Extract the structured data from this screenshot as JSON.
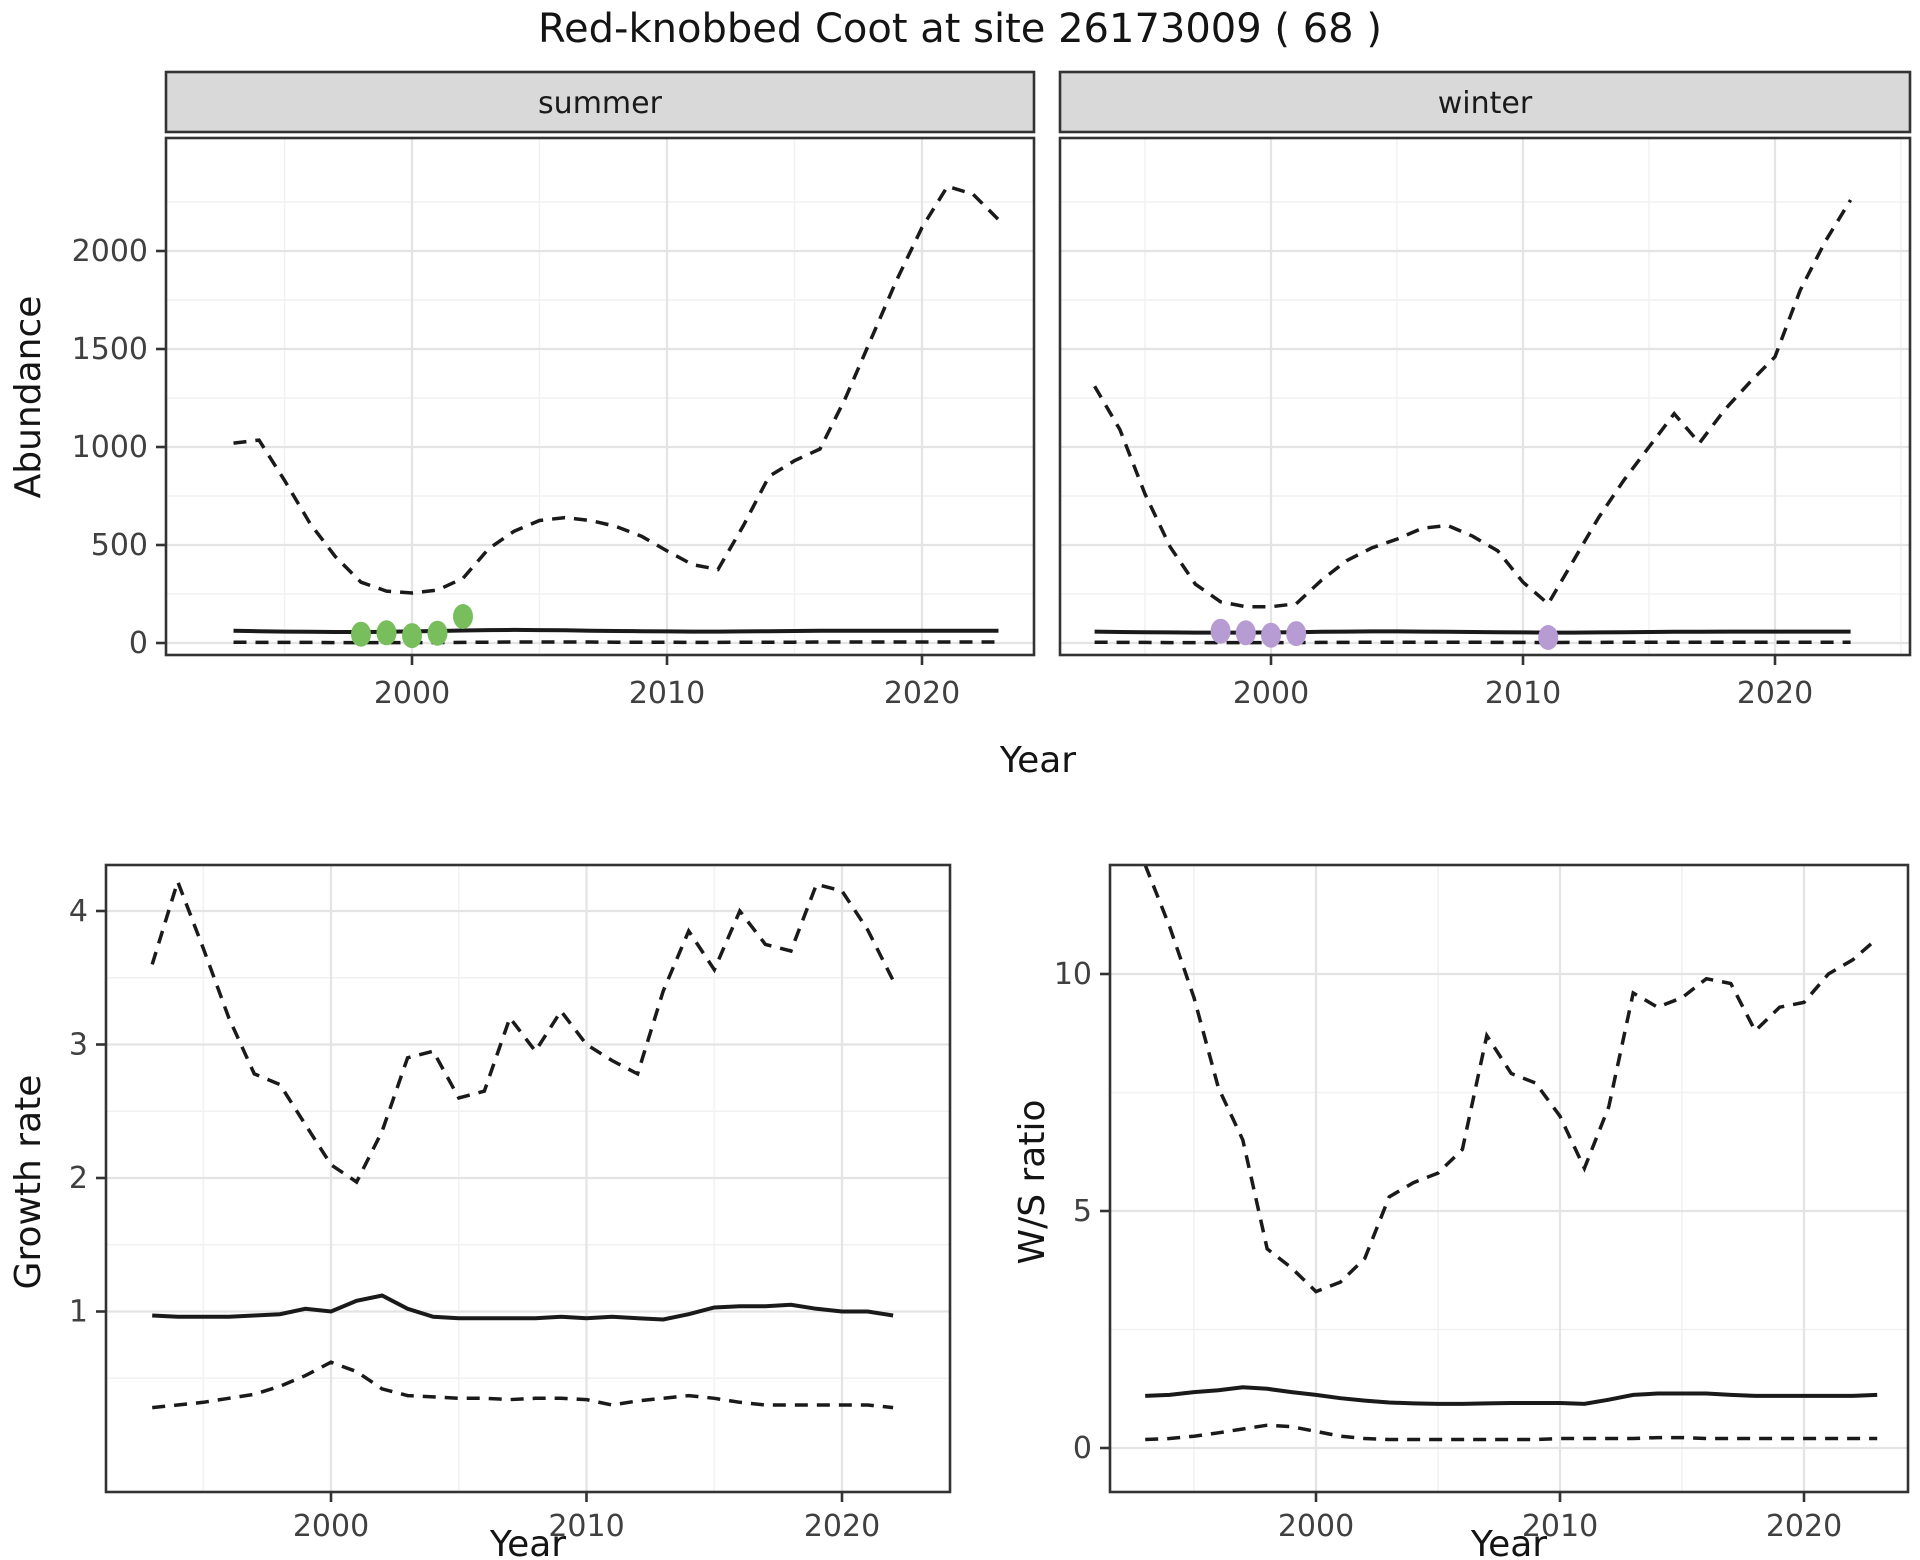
{
  "title": "Red-knobbed Coot at site 26173009 ( 68 )",
  "colors": {
    "line": "#1a1a1a",
    "summer_points": "#78BE5C",
    "winter_points": "#B79BD3",
    "strip_bg": "#D9D9D9",
    "panel_border": "#333333",
    "grid_major": "#E4E4E4",
    "grid_minor": "#F1F1F1",
    "tick_text": "#404040",
    "axis_title": "#141414"
  },
  "chart_data": [
    {
      "id": "abundance-summer",
      "type": "line",
      "facet": "summer",
      "xlabel": "Year",
      "ylabel": "Abundance",
      "x_ticks": [
        2000,
        2010,
        2020
      ],
      "y_ticks": [
        0,
        500,
        1000,
        1500,
        2000
      ],
      "x_minor": [
        1995,
        2005,
        2015
      ],
      "y_minor": [
        250,
        750,
        1250,
        1750,
        2250
      ],
      "xlim": [
        1990.3,
        2024.4
      ],
      "ylim": [
        -60,
        2580
      ],
      "years": [
        1993,
        1994,
        1995,
        1996,
        1997,
        1998,
        1999,
        2000,
        2001,
        2002,
        2003,
        2004,
        2005,
        2006,
        2007,
        2008,
        2009,
        2010,
        2011,
        2012,
        2013,
        2014,
        2015,
        2016,
        2017,
        2018,
        2019,
        2020,
        2021,
        2022,
        2023
      ],
      "series": [
        {
          "name": "upper_ci",
          "style": "dashed",
          "values": [
            1020,
            1035,
            830,
            610,
            440,
            310,
            265,
            255,
            270,
            330,
            480,
            570,
            625,
            640,
            625,
            595,
            545,
            470,
            400,
            375,
            600,
            850,
            930,
            990,
            1250,
            1550,
            1850,
            2120,
            2330,
            2290,
            2160
          ]
        },
        {
          "name": "fitted",
          "style": "solid",
          "values": [
            62,
            60,
            58,
            57,
            56,
            56,
            57,
            59,
            61,
            64,
            66,
            67,
            66,
            65,
            63,
            61,
            60,
            59,
            58,
            58,
            59,
            60,
            61,
            62,
            62,
            63,
            63,
            63,
            62,
            62,
            62
          ]
        },
        {
          "name": "lower_ci",
          "style": "dashed",
          "values": [
            4,
            3,
            3,
            3,
            2,
            2,
            2,
            2,
            2,
            3,
            4,
            5,
            5,
            5,
            5,
            4,
            4,
            4,
            3,
            3,
            4,
            4,
            4,
            5,
            5,
            5,
            5,
            5,
            5,
            5,
            5
          ]
        }
      ],
      "points": {
        "name": "observed-counts-summer",
        "color": "#78BE5C",
        "years": [
          1998,
          1999,
          2000,
          2001,
          2002
        ],
        "values": [
          45,
          52,
          38,
          50,
          135
        ]
      }
    },
    {
      "id": "abundance-winter",
      "type": "line",
      "facet": "winter",
      "xlabel": "Year",
      "ylabel": "Abundance",
      "x_ticks": [
        2000,
        2010,
        2020
      ],
      "y_ticks": [
        0,
        500,
        1000,
        1500,
        2000
      ],
      "x_minor": [
        1995,
        2005,
        2015,
        2025
      ],
      "y_minor": [
        250,
        750,
        1250,
        1750,
        2250
      ],
      "xlim": [
        1991.6,
        2025.3
      ],
      "ylim": [
        -60,
        2580
      ],
      "years": [
        1993,
        1994,
        1995,
        1996,
        1997,
        1998,
        1999,
        2000,
        2001,
        2002,
        2003,
        2004,
        2005,
        2006,
        2007,
        2008,
        2009,
        2010,
        2011,
        2012,
        2013,
        2014,
        2015,
        2016,
        2017,
        2018,
        2019,
        2020,
        2021,
        2022,
        2023
      ],
      "series": [
        {
          "name": "upper_ci",
          "style": "dashed",
          "values": [
            1310,
            1090,
            760,
            490,
            300,
            210,
            185,
            185,
            200,
            320,
            420,
            485,
            530,
            585,
            600,
            545,
            470,
            310,
            200,
            420,
            640,
            830,
            1000,
            1170,
            1020,
            1190,
            1330,
            1460,
            1800,
            2050,
            2260
          ]
        },
        {
          "name": "fitted",
          "style": "solid",
          "values": [
            58,
            56,
            55,
            54,
            53,
            53,
            53,
            54,
            55,
            57,
            58,
            59,
            59,
            58,
            57,
            56,
            55,
            54,
            53,
            53,
            54,
            55,
            56,
            57,
            57,
            58,
            58,
            58,
            58,
            58,
            58
          ]
        },
        {
          "name": "lower_ci",
          "style": "dashed",
          "values": [
            4,
            3,
            3,
            2,
            2,
            2,
            2,
            2,
            2,
            3,
            3,
            4,
            4,
            4,
            4,
            4,
            3,
            3,
            2,
            3,
            3,
            4,
            4,
            4,
            4,
            4,
            4,
            4,
            4,
            4,
            4
          ]
        }
      ],
      "points": {
        "name": "observed-counts-winter",
        "color": "#B79BD3",
        "years": [
          1998,
          1999,
          2000,
          2001,
          2011
        ],
        "values": [
          60,
          52,
          40,
          48,
          28
        ]
      }
    },
    {
      "id": "growth-rate",
      "type": "line",
      "facet": null,
      "xlabel": "Year",
      "ylabel": "Growth rate",
      "x_ticks": [
        2000,
        2010,
        2020
      ],
      "y_ticks": [
        1,
        2,
        3,
        4
      ],
      "x_minor": [
        1995,
        2005,
        2015
      ],
      "y_minor": [
        0.5,
        1.5,
        2.5,
        3.5
      ],
      "xlim": [
        1991.2,
        2024.3
      ],
      "ylim": [
        -0.35,
        4.35
      ],
      "years": [
        1993,
        1994,
        1995,
        1996,
        1997,
        1998,
        1999,
        2000,
        2001,
        2002,
        2003,
        2004,
        2005,
        2006,
        2007,
        2008,
        2009,
        2010,
        2011,
        2012,
        2013,
        2014,
        2015,
        2016,
        2017,
        2018,
        2019,
        2020,
        2021,
        2022
      ],
      "series": [
        {
          "name": "upper_ci",
          "style": "dashed",
          "values": [
            3.6,
            4.22,
            3.72,
            3.2,
            2.78,
            2.7,
            2.4,
            2.1,
            1.97,
            2.35,
            2.9,
            2.95,
            2.6,
            2.65,
            3.2,
            2.95,
            3.25,
            3.0,
            2.88,
            2.78,
            3.4,
            3.85,
            3.56,
            4.0,
            3.75,
            3.7,
            4.2,
            4.15,
            3.86,
            3.48
          ]
        },
        {
          "name": "fitted",
          "style": "solid",
          "values": [
            0.97,
            0.96,
            0.96,
            0.96,
            0.97,
            0.98,
            1.02,
            1.0,
            1.08,
            1.12,
            1.02,
            0.96,
            0.95,
            0.95,
            0.95,
            0.95,
            0.96,
            0.95,
            0.96,
            0.95,
            0.94,
            0.98,
            1.03,
            1.04,
            1.04,
            1.05,
            1.02,
            1.0,
            1.0,
            0.97
          ]
        },
        {
          "name": "lower_ci",
          "style": "dashed",
          "values": [
            0.28,
            0.3,
            0.32,
            0.35,
            0.38,
            0.44,
            0.52,
            0.62,
            0.55,
            0.42,
            0.37,
            0.36,
            0.35,
            0.35,
            0.34,
            0.35,
            0.35,
            0.34,
            0.3,
            0.33,
            0.35,
            0.37,
            0.35,
            0.32,
            0.3,
            0.3,
            0.3,
            0.3,
            0.3,
            0.28
          ]
        }
      ],
      "points": null
    },
    {
      "id": "ws-ratio",
      "type": "line",
      "facet": null,
      "xlabel": "Year",
      "ylabel": "W/S ratio",
      "x_ticks": [
        2000,
        2010,
        2020
      ],
      "y_ticks": [
        0,
        5,
        10
      ],
      "x_minor": [
        1995,
        2005,
        2015
      ],
      "y_minor": [
        2.5,
        7.5
      ],
      "xlim": [
        1991.6,
        2024.3
      ],
      "ylim": [
        -0.9,
        12.4
      ],
      "years": [
        1993,
        1994,
        1995,
        1996,
        1997,
        1998,
        1999,
        2000,
        2001,
        2002,
        2003,
        2004,
        2005,
        2006,
        2007,
        2008,
        2009,
        2010,
        2011,
        2012,
        2013,
        2014,
        2015,
        2016,
        2017,
        2018,
        2019,
        2020,
        2021,
        2022,
        2023
      ],
      "series": [
        {
          "name": "upper_ci",
          "style": "dashed",
          "values": [
            12.3,
            11.0,
            9.5,
            7.6,
            6.5,
            4.2,
            3.8,
            3.3,
            3.5,
            4.0,
            5.3,
            5.6,
            5.8,
            6.3,
            8.7,
            7.9,
            7.7,
            7.0,
            5.9,
            7.2,
            9.6,
            9.3,
            9.5,
            9.9,
            9.8,
            8.8,
            9.3,
            9.4,
            10.0,
            10.3,
            10.75
          ]
        },
        {
          "name": "fitted",
          "style": "solid",
          "values": [
            1.1,
            1.12,
            1.18,
            1.22,
            1.28,
            1.25,
            1.18,
            1.12,
            1.05,
            1.0,
            0.96,
            0.94,
            0.93,
            0.93,
            0.94,
            0.95,
            0.95,
            0.95,
            0.93,
            1.02,
            1.12,
            1.15,
            1.15,
            1.15,
            1.12,
            1.1,
            1.1,
            1.1,
            1.1,
            1.1,
            1.12
          ]
        },
        {
          "name": "lower_ci",
          "style": "dashed",
          "values": [
            0.18,
            0.2,
            0.25,
            0.32,
            0.4,
            0.48,
            0.45,
            0.35,
            0.25,
            0.2,
            0.18,
            0.18,
            0.18,
            0.18,
            0.18,
            0.18,
            0.18,
            0.2,
            0.2,
            0.2,
            0.2,
            0.22,
            0.22,
            0.2,
            0.2,
            0.2,
            0.2,
            0.2,
            0.2,
            0.2,
            0.2
          ]
        }
      ],
      "points": null
    }
  ]
}
